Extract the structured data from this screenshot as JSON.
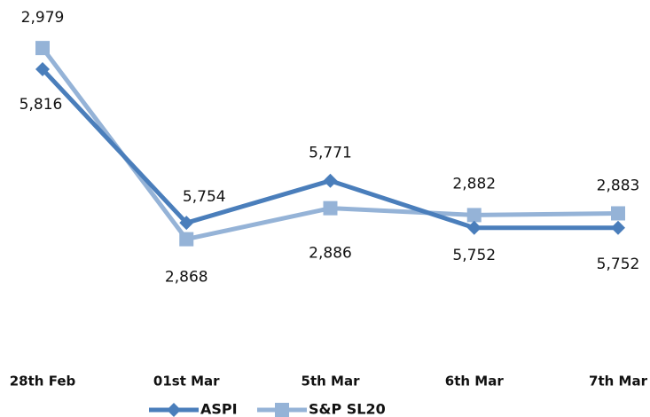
{
  "chart_data": {
    "type": "line",
    "categories": [
      "28th Feb",
      "01st Mar",
      "5th Mar",
      "6th Mar",
      "7th Mar"
    ],
    "ylim": [
      5705,
      5835
    ],
    "y2lim": [
      2807,
      2994
    ],
    "series": [
      {
        "name": "ASPI",
        "color": "#4a7ebb",
        "marker": "diamond",
        "values": [
          5816,
          5754,
          5771,
          5752,
          5752
        ],
        "value_labels": [
          "5,816",
          "5,754",
          "5,771",
          "5,752",
          "5,752"
        ]
      },
      {
        "name": "S&P SL20",
        "color": "#95b3d7",
        "marker": "square",
        "axis": "y2",
        "values": [
          2979,
          2868,
          2886,
          2882,
          2883
        ],
        "value_labels": [
          "2,979",
          "2,868",
          "2,886",
          "2,882",
          "2,883"
        ]
      }
    ],
    "legend": "bottom"
  }
}
